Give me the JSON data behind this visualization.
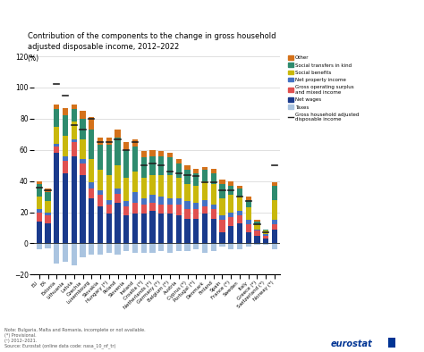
{
  "title": "Contribution of the components to the change in gross household\nadjusted disposable income, 2012–2022",
  "ylabel": "(%)",
  "ylim": [
    -20,
    120
  ],
  "yticks": [
    -20,
    0,
    20,
    40,
    60,
    80,
    100,
    120
  ],
  "note": "Note: Bulgaria, Malta and Romania, incomplete or not available.\n(*) Provisional.\n(²) 2012–2021.\nSource: Eurostat (online data code: nasa_10_nf_tr)",
  "countries": [
    "EU",
    "EA",
    "Estonia",
    "Lithuania",
    "Latvia",
    "Czechia",
    "Luxembourg",
    "Slovakia",
    "Hungary (*)",
    "Poland",
    "Slovenia",
    "Ireland",
    "Croatia (*)",
    "Netherlands (*)",
    "Germany (*)",
    "Belgium (*)",
    "Austria",
    "Cyprus (*)",
    "Portugal (*)",
    "Denmark",
    "Finland",
    "Spain",
    "France (*)",
    "Sweden",
    "Italy",
    "Greece (*)",
    "Switzerland (*)",
    "Norway (*)"
  ],
  "colors": {
    "net_wages": "#1a3a8c",
    "taxes": "#aac4e0",
    "gross_op": "#e05050",
    "net_property": "#4472c4",
    "social_benefits": "#c9b80c",
    "social_transfers": "#2e8b6e",
    "other": "#d4711a",
    "total_line": "#222222"
  },
  "data": {
    "net_wages": [
      14,
      13,
      58,
      45,
      56,
      44,
      29,
      24,
      19,
      26,
      18,
      19,
      19,
      21,
      19,
      19,
      18,
      16,
      16,
      19,
      16,
      7,
      11,
      13,
      7,
      5,
      3,
      9
    ],
    "taxes": [
      -4,
      -3,
      -13,
      -12,
      -14,
      -9,
      -7,
      -7,
      -6,
      -7,
      -5,
      -6,
      -6,
      -6,
      -5,
      -6,
      -5,
      -5,
      -4,
      -6,
      -5,
      -2,
      -4,
      -4,
      -2,
      -1,
      -1,
      -4
    ],
    "gross_op": [
      6,
      5,
      4,
      8,
      9,
      7,
      6,
      7,
      6,
      6,
      6,
      7,
      6,
      5,
      6,
      6,
      7,
      6,
      6,
      5,
      6,
      8,
      6,
      5,
      5,
      3,
      2,
      3
    ],
    "net_property": [
      2,
      2,
      2,
      3,
      2,
      3,
      4,
      3,
      3,
      3,
      3,
      7,
      4,
      5,
      5,
      4,
      4,
      5,
      4,
      4,
      3,
      3,
      3,
      3,
      3,
      1,
      1,
      3
    ],
    "social_benefits": [
      8,
      7,
      11,
      13,
      11,
      13,
      15,
      13,
      16,
      15,
      15,
      13,
      13,
      13,
      14,
      15,
      13,
      11,
      11,
      12,
      13,
      11,
      11,
      9,
      8,
      3,
      2,
      13
    ],
    "social_transfers": [
      8,
      6,
      11,
      13,
      8,
      13,
      19,
      16,
      19,
      18,
      18,
      16,
      13,
      12,
      12,
      11,
      9,
      9,
      8,
      7,
      7,
      9,
      6,
      5,
      5,
      2,
      1,
      9
    ],
    "other": [
      2,
      2,
      3,
      5,
      3,
      5,
      8,
      5,
      5,
      5,
      5,
      5,
      4,
      4,
      3,
      3,
      3,
      3,
      3,
      2,
      3,
      3,
      3,
      2,
      2,
      1,
      0,
      2
    ],
    "total": [
      36,
      34,
      102,
      95,
      76,
      73,
      80,
      65,
      65,
      67,
      60,
      65,
      50,
      51,
      50,
      46,
      45,
      44,
      43,
      39,
      39,
      34,
      34,
      30,
      27,
      12,
      7,
      50
    ]
  }
}
